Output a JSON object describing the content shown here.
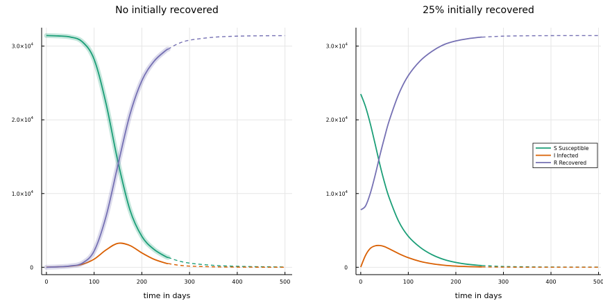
{
  "colors": {
    "susceptible": "#1b9e77",
    "infected": "#d95f02",
    "recovered": "#7570b3",
    "grid": "#e6e6e6",
    "axis": "#000000",
    "background": "#ffffff"
  },
  "chart_data": [
    {
      "type": "line",
      "title": "No initially recovered",
      "xlabel": "time in days",
      "ylabel": "",
      "xlim": [
        -10,
        515
      ],
      "ylim": [
        -1000,
        32500
      ],
      "x_ticks": [
        0,
        100,
        200,
        300,
        400,
        500
      ],
      "x_tick_labels": [
        "0",
        "100",
        "200",
        "300",
        "400",
        "500"
      ],
      "y_ticks": [
        0,
        10000,
        20000,
        30000
      ],
      "y_tick_labels": [
        {
          "base": "0",
          "exp": ""
        },
        {
          "base": "1.0×10",
          "exp": "4"
        },
        {
          "base": "2.0×10",
          "exp": "4"
        },
        {
          "base": "3.0×10",
          "exp": "4"
        }
      ],
      "grid": true,
      "legend": null,
      "solid_until": 255,
      "dashed_after": 255,
      "series": [
        {
          "name": "S Susceptible",
          "color_key": "susceptible",
          "band": true,
          "x": [
            0,
            25,
            50,
            75,
            100,
            125,
            150,
            175,
            200,
            225,
            250,
            275,
            300,
            350,
            400,
            450,
            500
          ],
          "y": [
            31430,
            31380,
            31230,
            30600,
            28200,
            22200,
            14300,
            7800,
            4200,
            2450,
            1450,
            900,
            560,
            260,
            130,
            70,
            40
          ]
        },
        {
          "name": "I Infected",
          "color_key": "infected",
          "band": false,
          "x": [
            0,
            25,
            50,
            75,
            100,
            125,
            150,
            175,
            200,
            225,
            250,
            275,
            300,
            350,
            400,
            450,
            500
          ],
          "y": [
            20,
            60,
            150,
            400,
            1100,
            2350,
            3250,
            2950,
            1950,
            1100,
            560,
            300,
            160,
            55,
            20,
            8,
            4
          ]
        },
        {
          "name": "R Recovered",
          "color_key": "recovered",
          "band": true,
          "x": [
            0,
            25,
            50,
            75,
            100,
            125,
            150,
            175,
            200,
            225,
            250,
            275,
            300,
            350,
            400,
            450,
            500
          ],
          "y": [
            0,
            60,
            180,
            550,
            2200,
            6900,
            13900,
            20700,
            25300,
            27900,
            29400,
            30300,
            30800,
            31200,
            31350,
            31400,
            31420
          ]
        }
      ]
    },
    {
      "type": "line",
      "title": "25% initially recovered",
      "xlabel": "time in days",
      "ylabel": "",
      "xlim": [
        -10,
        505
      ],
      "ylim": [
        -1000,
        32500
      ],
      "x_ticks": [
        0,
        100,
        200,
        300,
        400,
        500
      ],
      "x_tick_labels": [
        "0",
        "100",
        "200",
        "300",
        "400",
        "500"
      ],
      "y_ticks": [
        0,
        10000,
        20000,
        30000
      ],
      "y_tick_labels": [
        {
          "base": "0",
          "exp": ""
        },
        {
          "base": "1.0×10",
          "exp": "4"
        },
        {
          "base": "2.0×10",
          "exp": "4"
        },
        {
          "base": "3.0×10",
          "exp": "4"
        }
      ],
      "grid": true,
      "legend": "right",
      "solid_until": 255,
      "dashed_after": 255,
      "series": [
        {
          "name": "S Susceptible",
          "color_key": "susceptible",
          "band": false,
          "x": [
            0,
            10,
            20,
            30,
            40,
            50,
            60,
            80,
            100,
            125,
            150,
            175,
            200,
            225,
            250,
            300,
            350,
            400,
            450,
            500
          ],
          "y": [
            23500,
            21800,
            19500,
            16800,
            14000,
            11500,
            9400,
            6200,
            4200,
            2700,
            1700,
            1050,
            650,
            400,
            250,
            110,
            60,
            35,
            25,
            20
          ]
        },
        {
          "name": "I Infected",
          "color_key": "infected",
          "band": false,
          "x": [
            0,
            10,
            20,
            30,
            40,
            50,
            60,
            80,
            100,
            125,
            150,
            175,
            200,
            225,
            250,
            300,
            350,
            400,
            450,
            500
          ],
          "y": [
            20,
            1600,
            2550,
            2900,
            2950,
            2800,
            2500,
            1850,
            1300,
            800,
            480,
            280,
            160,
            90,
            50,
            15,
            5,
            2,
            1,
            0
          ]
        },
        {
          "name": "R Recovered",
          "color_key": "recovered",
          "band": false,
          "x": [
            0,
            10,
            20,
            30,
            40,
            50,
            60,
            80,
            100,
            125,
            150,
            175,
            200,
            225,
            250,
            300,
            350,
            400,
            450,
            500
          ],
          "y": [
            7800,
            8300,
            10000,
            12400,
            15100,
            17600,
            19900,
            23500,
            26000,
            28000,
            29300,
            30200,
            30700,
            31000,
            31200,
            31350,
            31400,
            31420,
            31430,
            31430
          ]
        }
      ]
    }
  ]
}
